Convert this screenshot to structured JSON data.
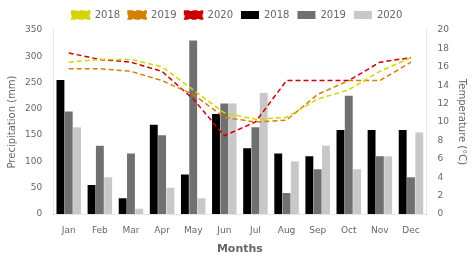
{
  "chart_data": {
    "type": "bar",
    "categories": [
      "Jan",
      "Feb",
      "Mar",
      "Apr",
      "May",
      "Jun",
      "Jul",
      "Aug",
      "Sep",
      "Oct",
      "Nov",
      "Dec"
    ],
    "xlabel": "Months",
    "ylabel": "Precipitation (mm)",
    "y2label": "Temperature (°C)",
    "ylim": [
      0,
      350
    ],
    "yticks": [
      0,
      50,
      100,
      150,
      200,
      250,
      300,
      350
    ],
    "y2lim": [
      0,
      20
    ],
    "y2ticks": [
      0,
      2,
      4,
      6,
      8,
      10,
      12,
      14,
      16,
      18,
      20
    ],
    "grid": false,
    "legend": "top",
    "series": [
      {
        "name": "2018",
        "color": "#000000",
        "values": [
          255,
          55,
          30,
          170,
          75,
          190,
          125,
          115,
          110,
          160,
          160,
          160
        ]
      },
      {
        "name": "2019",
        "color": "#707070",
        "values": [
          195,
          130,
          115,
          150,
          330,
          210,
          165,
          40,
          85,
          225,
          110,
          70
        ]
      },
      {
        "name": "2020",
        "color": "#c8c8c8",
        "values": [
          165,
          70,
          10,
          50,
          30,
          210,
          230,
          100,
          130,
          85,
          110,
          155
        ]
      },
      {
        "name": "2018",
        "type": "line",
        "axis": "y2",
        "color": "#d4d400",
        "line_style": "dashed",
        "values": [
          16.5,
          16.8,
          16.8,
          16.0,
          13.5,
          11.0,
          10.3,
          10.5,
          12.5,
          13.5,
          15.5,
          17.0
        ]
      },
      {
        "name": "2019",
        "type": "line",
        "axis": "y2",
        "color": "#d48000",
        "line_style": "dashed",
        "values": [
          15.8,
          15.8,
          15.5,
          14.5,
          13.0,
          10.5,
          10.0,
          10.2,
          13.0,
          14.5,
          14.5,
          16.5
        ]
      },
      {
        "name": "2020",
        "type": "line",
        "axis": "y2",
        "color": "#cc0000",
        "line_style": "dashed",
        "values": [
          17.5,
          16.8,
          16.5,
          15.5,
          12.5,
          8.5,
          10.0,
          14.5,
          14.5,
          14.5,
          16.5,
          17.0
        ]
      }
    ]
  }
}
